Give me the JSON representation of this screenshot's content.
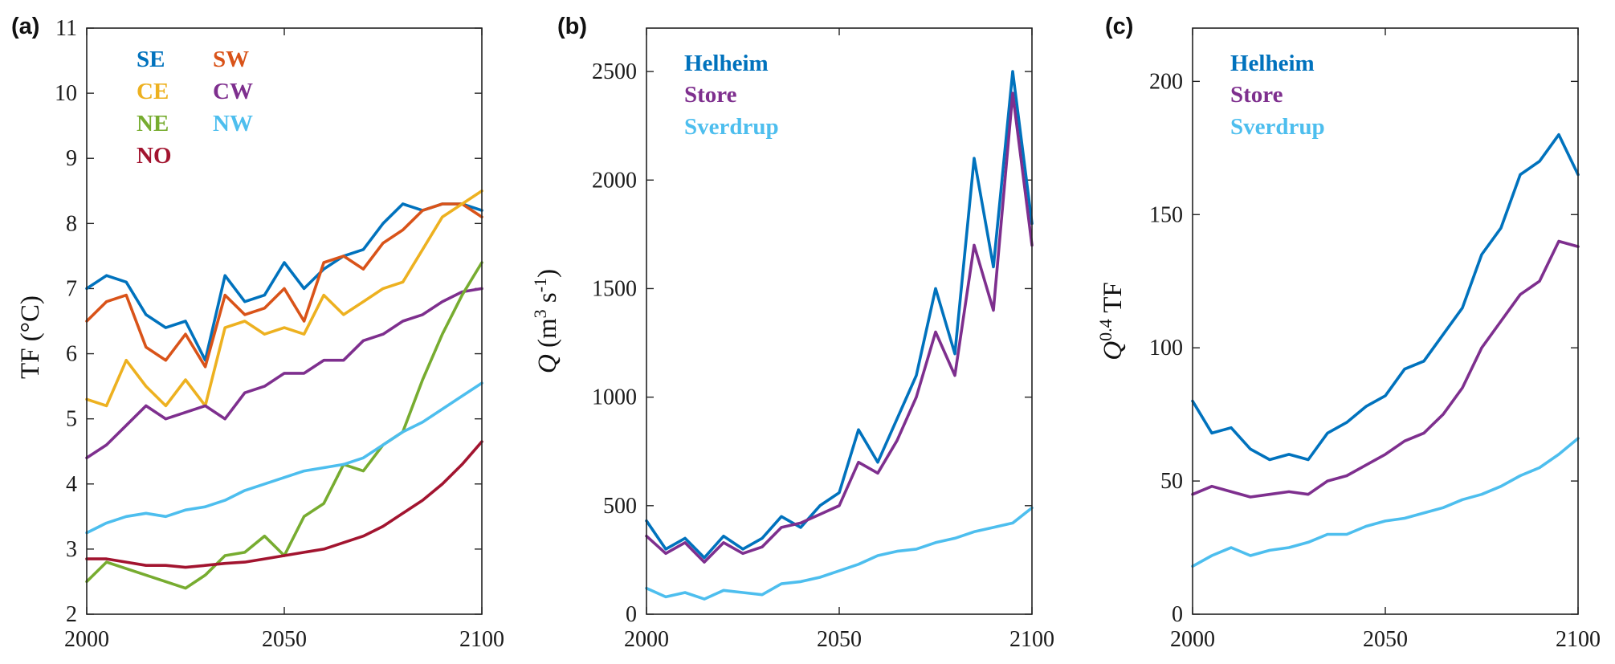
{
  "colors": {
    "SE": "#0072BD",
    "SW": "#D95319",
    "CE": "#EDB120",
    "CW": "#7E2F8E",
    "NE": "#77AC30",
    "NW": "#4DBEEE",
    "NO": "#A2142F",
    "Helheim": "#0072BD",
    "Store": "#7E2F8E",
    "Sverdrup": "#4DBEEE"
  },
  "chart_data": [
    {
      "panel": "(a)",
      "type": "line",
      "xlabel": "",
      "ylabel": "TF (°C)",
      "xlim": [
        2000,
        2100
      ],
      "ylim": [
        2,
        11
      ],
      "xticks": [
        2000,
        2050,
        2100
      ],
      "yticks": [
        2,
        3,
        4,
        5,
        6,
        7,
        8,
        9,
        10,
        11
      ],
      "legend": [
        "SE",
        "SW",
        "CE",
        "CW",
        "NE",
        "NW",
        "NO"
      ],
      "series": [
        {
          "name": "SE",
          "x": [
            2000,
            2005,
            2010,
            2015,
            2020,
            2025,
            2030,
            2035,
            2040,
            2045,
            2050,
            2055,
            2060,
            2065,
            2070,
            2075,
            2080,
            2085,
            2090,
            2095,
            2100
          ],
          "values": [
            7.0,
            7.2,
            7.1,
            6.6,
            6.4,
            6.5,
            5.9,
            7.2,
            6.8,
            6.9,
            7.4,
            7.0,
            7.3,
            7.5,
            7.6,
            8.0,
            8.3,
            8.2,
            8.3,
            8.3,
            8.2
          ]
        },
        {
          "name": "SW",
          "x": [
            2000,
            2005,
            2010,
            2015,
            2020,
            2025,
            2030,
            2035,
            2040,
            2045,
            2050,
            2055,
            2060,
            2065,
            2070,
            2075,
            2080,
            2085,
            2090,
            2095,
            2100
          ],
          "values": [
            6.5,
            6.8,
            6.9,
            6.1,
            5.9,
            6.3,
            5.8,
            6.9,
            6.6,
            6.7,
            7.0,
            6.5,
            7.4,
            7.5,
            7.3,
            7.7,
            7.9,
            8.2,
            8.3,
            8.3,
            8.1
          ]
        },
        {
          "name": "CE",
          "x": [
            2000,
            2005,
            2010,
            2015,
            2020,
            2025,
            2030,
            2035,
            2040,
            2045,
            2050,
            2055,
            2060,
            2065,
            2070,
            2075,
            2080,
            2085,
            2090,
            2095,
            2100
          ],
          "values": [
            5.3,
            5.2,
            5.9,
            5.5,
            5.2,
            5.6,
            5.2,
            6.4,
            6.5,
            6.3,
            6.4,
            6.3,
            6.9,
            6.6,
            6.8,
            7.0,
            7.1,
            7.6,
            8.1,
            8.3,
            8.5
          ]
        },
        {
          "name": "CW",
          "x": [
            2000,
            2005,
            2010,
            2015,
            2020,
            2025,
            2030,
            2035,
            2040,
            2045,
            2050,
            2055,
            2060,
            2065,
            2070,
            2075,
            2080,
            2085,
            2090,
            2095,
            2100
          ],
          "values": [
            4.4,
            4.6,
            4.9,
            5.2,
            5.0,
            5.1,
            5.2,
            5.0,
            5.4,
            5.5,
            5.7,
            5.7,
            5.9,
            5.9,
            6.2,
            6.3,
            6.5,
            6.6,
            6.8,
            6.95,
            7.0
          ]
        },
        {
          "name": "NE",
          "x": [
            2000,
            2005,
            2010,
            2015,
            2020,
            2025,
            2030,
            2035,
            2040,
            2045,
            2050,
            2055,
            2060,
            2065,
            2070,
            2075,
            2080,
            2085,
            2090,
            2095,
            2100
          ],
          "values": [
            2.5,
            2.8,
            2.7,
            2.6,
            2.5,
            2.4,
            2.6,
            2.9,
            2.95,
            3.2,
            2.9,
            3.5,
            3.7,
            4.3,
            4.2,
            4.6,
            4.8,
            5.6,
            6.3,
            6.9,
            7.4
          ]
        },
        {
          "name": "NW",
          "x": [
            2000,
            2005,
            2010,
            2015,
            2020,
            2025,
            2030,
            2035,
            2040,
            2045,
            2050,
            2055,
            2060,
            2065,
            2070,
            2075,
            2080,
            2085,
            2090,
            2095,
            2100
          ],
          "values": [
            3.25,
            3.4,
            3.5,
            3.55,
            3.5,
            3.6,
            3.65,
            3.75,
            3.9,
            4.0,
            4.1,
            4.2,
            4.25,
            4.3,
            4.4,
            4.6,
            4.8,
            4.95,
            5.15,
            5.35,
            5.55
          ]
        },
        {
          "name": "NO",
          "x": [
            2000,
            2005,
            2010,
            2015,
            2020,
            2025,
            2030,
            2035,
            2040,
            2045,
            2050,
            2055,
            2060,
            2065,
            2070,
            2075,
            2080,
            2085,
            2090,
            2095,
            2100
          ],
          "values": [
            2.85,
            2.85,
            2.8,
            2.75,
            2.75,
            2.72,
            2.75,
            2.78,
            2.8,
            2.85,
            2.9,
            2.95,
            3.0,
            3.1,
            3.2,
            3.35,
            3.55,
            3.75,
            4.0,
            4.3,
            4.65
          ]
        }
      ]
    },
    {
      "panel": "(b)",
      "type": "line",
      "xlabel": "",
      "ylabel": "Q (m3 s-1)",
      "xlim": [
        2000,
        2100
      ],
      "ylim": [
        0,
        2700
      ],
      "xticks": [
        2000,
        2050,
        2100
      ],
      "yticks": [
        0,
        500,
        1000,
        1500,
        2000,
        2500
      ],
      "legend": [
        "Helheim",
        "Store",
        "Sverdrup"
      ],
      "series": [
        {
          "name": "Helheim",
          "x": [
            2000,
            2005,
            2010,
            2015,
            2020,
            2025,
            2030,
            2035,
            2040,
            2045,
            2050,
            2055,
            2060,
            2065,
            2070,
            2075,
            2080,
            2085,
            2090,
            2095,
            2100
          ],
          "values": [
            430,
            300,
            350,
            260,
            360,
            300,
            350,
            450,
            400,
            500,
            560,
            850,
            700,
            900,
            1100,
            1500,
            1200,
            2100,
            1600,
            2500,
            1800
          ]
        },
        {
          "name": "Store",
          "x": [
            2000,
            2005,
            2010,
            2015,
            2020,
            2025,
            2030,
            2035,
            2040,
            2045,
            2050,
            2055,
            2060,
            2065,
            2070,
            2075,
            2080,
            2085,
            2090,
            2095,
            2100
          ],
          "values": [
            360,
            280,
            330,
            240,
            330,
            280,
            310,
            400,
            420,
            460,
            500,
            700,
            650,
            800,
            1000,
            1300,
            1100,
            1700,
            1400,
            2400,
            1700
          ]
        },
        {
          "name": "Sverdrup",
          "x": [
            2000,
            2005,
            2010,
            2015,
            2020,
            2025,
            2030,
            2035,
            2040,
            2045,
            2050,
            2055,
            2060,
            2065,
            2070,
            2075,
            2080,
            2085,
            2090,
            2095,
            2100
          ],
          "values": [
            120,
            80,
            100,
            70,
            110,
            100,
            90,
            140,
            150,
            170,
            200,
            230,
            270,
            290,
            300,
            330,
            350,
            380,
            400,
            420,
            490
          ]
        }
      ]
    },
    {
      "panel": "(c)",
      "type": "line",
      "xlabel": "",
      "ylabel": "Q0.4 TF",
      "xlim": [
        2000,
        2100
      ],
      "ylim": [
        0,
        220
      ],
      "xticks": [
        2000,
        2050,
        2100
      ],
      "yticks": [
        0,
        50,
        100,
        150,
        200
      ],
      "legend": [
        "Helheim",
        "Store",
        "Sverdrup"
      ],
      "series": [
        {
          "name": "Helheim",
          "x": [
            2000,
            2005,
            2010,
            2015,
            2020,
            2025,
            2030,
            2035,
            2040,
            2045,
            2050,
            2055,
            2060,
            2065,
            2070,
            2075,
            2080,
            2085,
            2090,
            2095,
            2100
          ],
          "values": [
            80,
            68,
            70,
            62,
            58,
            60,
            58,
            68,
            72,
            78,
            82,
            92,
            95,
            105,
            115,
            135,
            145,
            165,
            170,
            180,
            165
          ]
        },
        {
          "name": "Store",
          "x": [
            2000,
            2005,
            2010,
            2015,
            2020,
            2025,
            2030,
            2035,
            2040,
            2045,
            2050,
            2055,
            2060,
            2065,
            2070,
            2075,
            2080,
            2085,
            2090,
            2095,
            2100
          ],
          "values": [
            45,
            48,
            46,
            44,
            45,
            46,
            45,
            50,
            52,
            56,
            60,
            65,
            68,
            75,
            85,
            100,
            110,
            120,
            125,
            140,
            138
          ]
        },
        {
          "name": "Sverdrup",
          "x": [
            2000,
            2005,
            2010,
            2015,
            2020,
            2025,
            2030,
            2035,
            2040,
            2045,
            2050,
            2055,
            2060,
            2065,
            2070,
            2075,
            2080,
            2085,
            2090,
            2095,
            2100
          ],
          "values": [
            18,
            22,
            25,
            22,
            24,
            25,
            27,
            30,
            30,
            33,
            35,
            36,
            38,
            40,
            43,
            45,
            48,
            52,
            55,
            60,
            66
          ]
        }
      ]
    }
  ]
}
